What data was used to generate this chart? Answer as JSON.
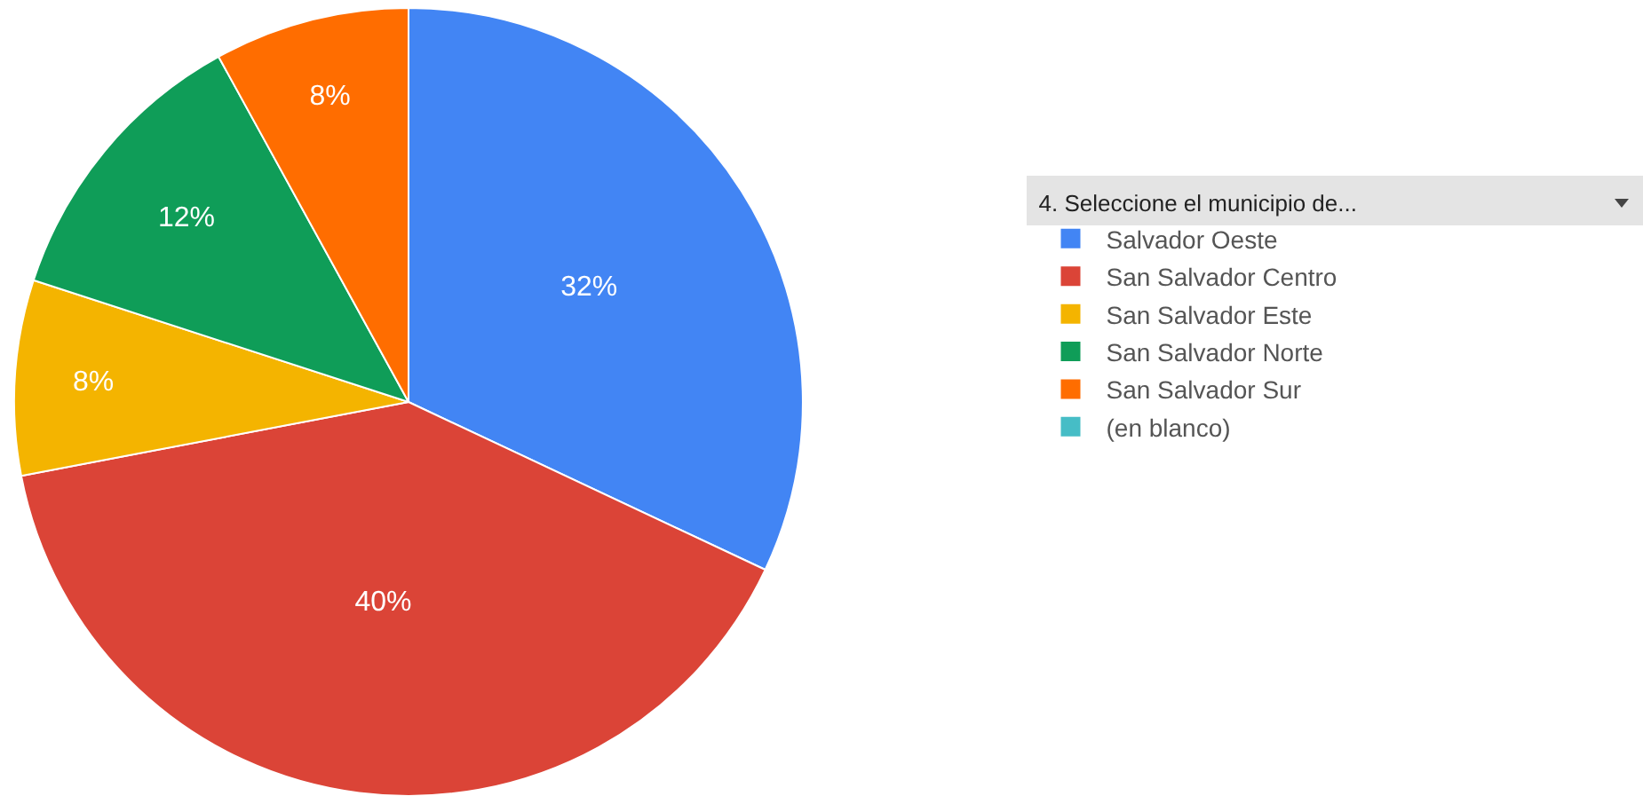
{
  "chart_data": {
    "type": "pie",
    "legend_title": "4. Seleccione el municipio de...",
    "categories": [
      "Salvador Oeste",
      "San Salvador Centro",
      "San Salvador Este",
      "San Salvador Norte",
      "San Salvador Sur",
      "(en blanco)"
    ],
    "values": [
      32,
      40,
      8,
      12,
      8,
      0
    ],
    "colors": [
      "#4285f4",
      "#db4437",
      "#f4b400",
      "#0f9d58",
      "#ff6d00",
      "#46bdc6"
    ],
    "value_labels": [
      "32%",
      "40%",
      "8%",
      "12%",
      "8%",
      null
    ],
    "legend": "right"
  }
}
